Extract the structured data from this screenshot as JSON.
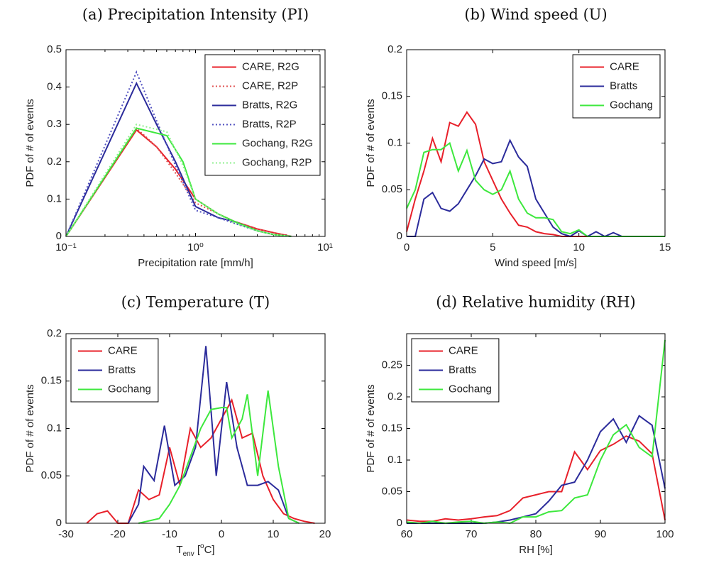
{
  "chart_data": [
    {
      "type": "line",
      "title": "(a) Precipitation Intensity (PI)",
      "xlabel": "Precipitation rate [mm/h]",
      "ylabel": "PDF of # of events",
      "xscale": "log",
      "xlim": [
        0.1,
        10
      ],
      "ylim": [
        0,
        0.5
      ],
      "xticks": [
        {
          "value": 0.1,
          "label": "10⁻¹"
        },
        {
          "value": 1,
          "label": "10⁰"
        },
        {
          "value": 10,
          "label": "10¹"
        }
      ],
      "yticks": [
        0,
        0.1,
        0.2,
        0.3,
        0.4,
        0.5
      ],
      "legend": "upper right",
      "series": [
        {
          "name": "CARE, R2G",
          "color": "#e8202a",
          "dash": "solid",
          "x": [
            0.1,
            0.35,
            0.5,
            0.7,
            1.0,
            1.5,
            2,
            3,
            4,
            5.5
          ],
          "values": [
            0,
            0.285,
            0.24,
            0.18,
            0.1,
            0.06,
            0.04,
            0.02,
            0.01,
            0
          ]
        },
        {
          "name": "CARE, R2P",
          "color": "#e05050",
          "dash": "dotted",
          "x": [
            0.1,
            0.35,
            0.5,
            0.7,
            1.0,
            1.5,
            2,
            3,
            4,
            5.5
          ],
          "values": [
            0,
            0.29,
            0.24,
            0.17,
            0.09,
            0.06,
            0.04,
            0.02,
            0.01,
            0
          ]
        },
        {
          "name": "Bratts, R2G",
          "color": "#2b2b9b",
          "dash": "solid",
          "x": [
            0.1,
            0.35,
            0.5,
            0.7,
            1.0,
            1.5,
            2,
            3,
            4,
            5.5
          ],
          "values": [
            0,
            0.41,
            0.3,
            0.2,
            0.08,
            0.05,
            0.04,
            0.015,
            0.005,
            0
          ]
        },
        {
          "name": "Bratts, R2P",
          "color": "#5050c0",
          "dash": "dotted",
          "x": [
            0.1,
            0.35,
            0.5,
            0.7,
            1.0,
            1.5,
            2,
            3,
            4,
            5.5
          ],
          "values": [
            0,
            0.44,
            0.31,
            0.19,
            0.07,
            0.05,
            0.035,
            0.015,
            0.005,
            0
          ]
        },
        {
          "name": "Gochang, R2G",
          "color": "#3de83d",
          "dash": "solid",
          "x": [
            0.1,
            0.35,
            0.6,
            0.8,
            1.0,
            1.5,
            2,
            3,
            4,
            5.5
          ],
          "values": [
            0,
            0.29,
            0.27,
            0.2,
            0.1,
            0.06,
            0.04,
            0.015,
            0.005,
            0
          ]
        },
        {
          "name": "Gochang, R2P",
          "color": "#90f090",
          "dash": "dotted",
          "x": [
            0.1,
            0.35,
            0.6,
            0.8,
            1.0,
            1.5,
            2,
            3,
            4,
            5.5
          ],
          "values": [
            0,
            0.3,
            0.28,
            0.19,
            0.1,
            0.06,
            0.035,
            0.015,
            0.005,
            0
          ]
        }
      ]
    },
    {
      "type": "line",
      "title": "(b) Wind speed (U)",
      "xlabel": "Wind speed [m/s]",
      "ylabel": "PDF of # of events",
      "xlim": [
        0,
        15
      ],
      "ylim": [
        0,
        0.2
      ],
      "xticks": [
        0,
        5,
        10,
        15
      ],
      "yticks": [
        0,
        0.05,
        0.1,
        0.15,
        0.2
      ],
      "legend": "upper right",
      "series": [
        {
          "name": "CARE",
          "color": "#e8202a",
          "dash": "solid",
          "x": [
            0,
            0.5,
            1,
            1.5,
            2,
            2.5,
            3,
            3.5,
            4,
            4.5,
            5,
            5.5,
            6,
            6.5,
            7,
            7.5,
            8,
            8.5,
            9,
            15
          ],
          "values": [
            0.005,
            0.04,
            0.07,
            0.105,
            0.08,
            0.122,
            0.118,
            0.133,
            0.12,
            0.08,
            0.06,
            0.04,
            0.025,
            0.012,
            0.01,
            0.005,
            0.003,
            0.002,
            0,
            0
          ]
        },
        {
          "name": "Bratts",
          "color": "#2b2b9b",
          "dash": "solid",
          "x": [
            0,
            0.5,
            1,
            1.5,
            2,
            2.5,
            3,
            3.5,
            4,
            4.5,
            5,
            5.5,
            6,
            6.5,
            7,
            7.5,
            8,
            8.5,
            9,
            9.5,
            10,
            10.5,
            11,
            11.5,
            12,
            12.5
          ],
          "values": [
            0,
            0,
            0.04,
            0.047,
            0.03,
            0.027,
            0.035,
            0.05,
            0.065,
            0.083,
            0.078,
            0.08,
            0.103,
            0.085,
            0.075,
            0.04,
            0.025,
            0.01,
            0.003,
            0,
            0.006,
            0,
            0.005,
            0,
            0.004,
            0
          ]
        },
        {
          "name": "Gochang",
          "color": "#3de83d",
          "dash": "solid",
          "x": [
            0,
            0.5,
            1,
            1.5,
            2,
            2.5,
            3,
            3.5,
            4,
            4.5,
            5,
            5.5,
            6,
            6.5,
            7,
            7.5,
            8,
            8.5,
            9,
            9.5,
            10,
            10.5,
            15
          ],
          "values": [
            0.03,
            0.05,
            0.09,
            0.093,
            0.093,
            0.1,
            0.07,
            0.092,
            0.06,
            0.05,
            0.045,
            0.05,
            0.07,
            0.04,
            0.025,
            0.02,
            0.02,
            0.018,
            0.005,
            0.003,
            0.007,
            0,
            0
          ]
        }
      ]
    },
    {
      "type": "line",
      "title": "(c) Temperature (T)",
      "xlabel": [
        "T",
        "env",
        " [",
        "o",
        "C]"
      ],
      "ylabel": "PDF of # of events",
      "xlim": [
        -30,
        20
      ],
      "ylim": [
        0,
        0.2
      ],
      "xticks": [
        -30,
        -20,
        -10,
        0,
        10,
        20
      ],
      "yticks": [
        0,
        0.05,
        0.1,
        0.15,
        0.2
      ],
      "legend": "upper left",
      "series": [
        {
          "name": "CARE",
          "color": "#e8202a",
          "dash": "solid",
          "x": [
            -26,
            -24,
            -22,
            -20,
            -18,
            -16,
            -14,
            -12,
            -10,
            -8,
            -6,
            -4,
            -2,
            0,
            2,
            4,
            6,
            8,
            10,
            12,
            14,
            16,
            18
          ],
          "values": [
            0,
            0.01,
            0.013,
            0,
            0,
            0.035,
            0.025,
            0.03,
            0.08,
            0.04,
            0.1,
            0.08,
            0.09,
            0.11,
            0.13,
            0.09,
            0.095,
            0.05,
            0.025,
            0.01,
            0.005,
            0.002,
            0
          ]
        },
        {
          "name": "Bratts",
          "color": "#2b2b9b",
          "dash": "solid",
          "x": [
            -18,
            -16,
            -15,
            -13,
            -11,
            -9,
            -7,
            -5,
            -3,
            -1,
            1,
            3,
            5,
            7,
            9,
            11,
            13,
            15
          ],
          "values": [
            0,
            0.02,
            0.06,
            0.045,
            0.103,
            0.04,
            0.05,
            0.08,
            0.187,
            0.05,
            0.149,
            0.08,
            0.04,
            0.04,
            0.044,
            0.035,
            0.005,
            0
          ]
        },
        {
          "name": "Gochang",
          "color": "#3de83d",
          "dash": "solid",
          "x": [
            -16,
            -12,
            -10,
            -8,
            -6,
            -4,
            -2,
            0,
            1,
            2,
            4,
            5,
            7,
            9,
            11,
            13,
            15
          ],
          "values": [
            0,
            0.005,
            0.02,
            0.04,
            0.07,
            0.1,
            0.12,
            0.122,
            0.122,
            0.09,
            0.11,
            0.136,
            0.05,
            0.14,
            0.06,
            0.005,
            0
          ]
        }
      ]
    },
    {
      "type": "line",
      "title": "(d) Relative humidity (RH)",
      "xlabel": "RH [%]",
      "ylabel": "PDF of # of events",
      "xlim": [
        60,
        100
      ],
      "ylim": [
        0,
        0.3
      ],
      "xticks": [
        60,
        70,
        80,
        90,
        100
      ],
      "yticks": [
        0,
        0.05,
        0.1,
        0.15,
        0.2,
        0.25
      ],
      "legend": "upper left",
      "series": [
        {
          "name": "CARE",
          "color": "#e8202a",
          "dash": "solid",
          "x": [
            60,
            62,
            64,
            66,
            68,
            70,
            72,
            74,
            76,
            78,
            80,
            82,
            84,
            86,
            88,
            90,
            92,
            94,
            96,
            98,
            100
          ],
          "values": [
            0.005,
            0.003,
            0.003,
            0.007,
            0.005,
            0.007,
            0.01,
            0.012,
            0.02,
            0.04,
            0.045,
            0.05,
            0.05,
            0.113,
            0.085,
            0.115,
            0.125,
            0.138,
            0.13,
            0.11,
            0.005
          ]
        },
        {
          "name": "Bratts",
          "color": "#2b2b9b",
          "dash": "solid",
          "x": [
            60,
            62,
            64,
            66,
            68,
            70,
            72,
            74,
            76,
            78,
            80,
            82,
            84,
            86,
            88,
            90,
            92,
            94,
            96,
            98,
            100
          ],
          "values": [
            0,
            0,
            0,
            0,
            0,
            0,
            0,
            0.002,
            0.005,
            0.01,
            0.015,
            0.035,
            0.06,
            0.065,
            0.1,
            0.145,
            0.165,
            0.128,
            0.17,
            0.155,
            0.055
          ]
        },
        {
          "name": "Gochang",
          "color": "#3de83d",
          "dash": "solid",
          "x": [
            60,
            62,
            64,
            66,
            68,
            70,
            72,
            74,
            76,
            78,
            80,
            82,
            84,
            86,
            88,
            90,
            92,
            94,
            96,
            98,
            100
          ],
          "values": [
            0.002,
            0,
            0.003,
            0,
            0.002,
            0.003,
            0,
            0.002,
            0,
            0.01,
            0.01,
            0.018,
            0.02,
            0.04,
            0.045,
            0.1,
            0.14,
            0.156,
            0.12,
            0.105,
            0.29
          ]
        }
      ]
    }
  ]
}
